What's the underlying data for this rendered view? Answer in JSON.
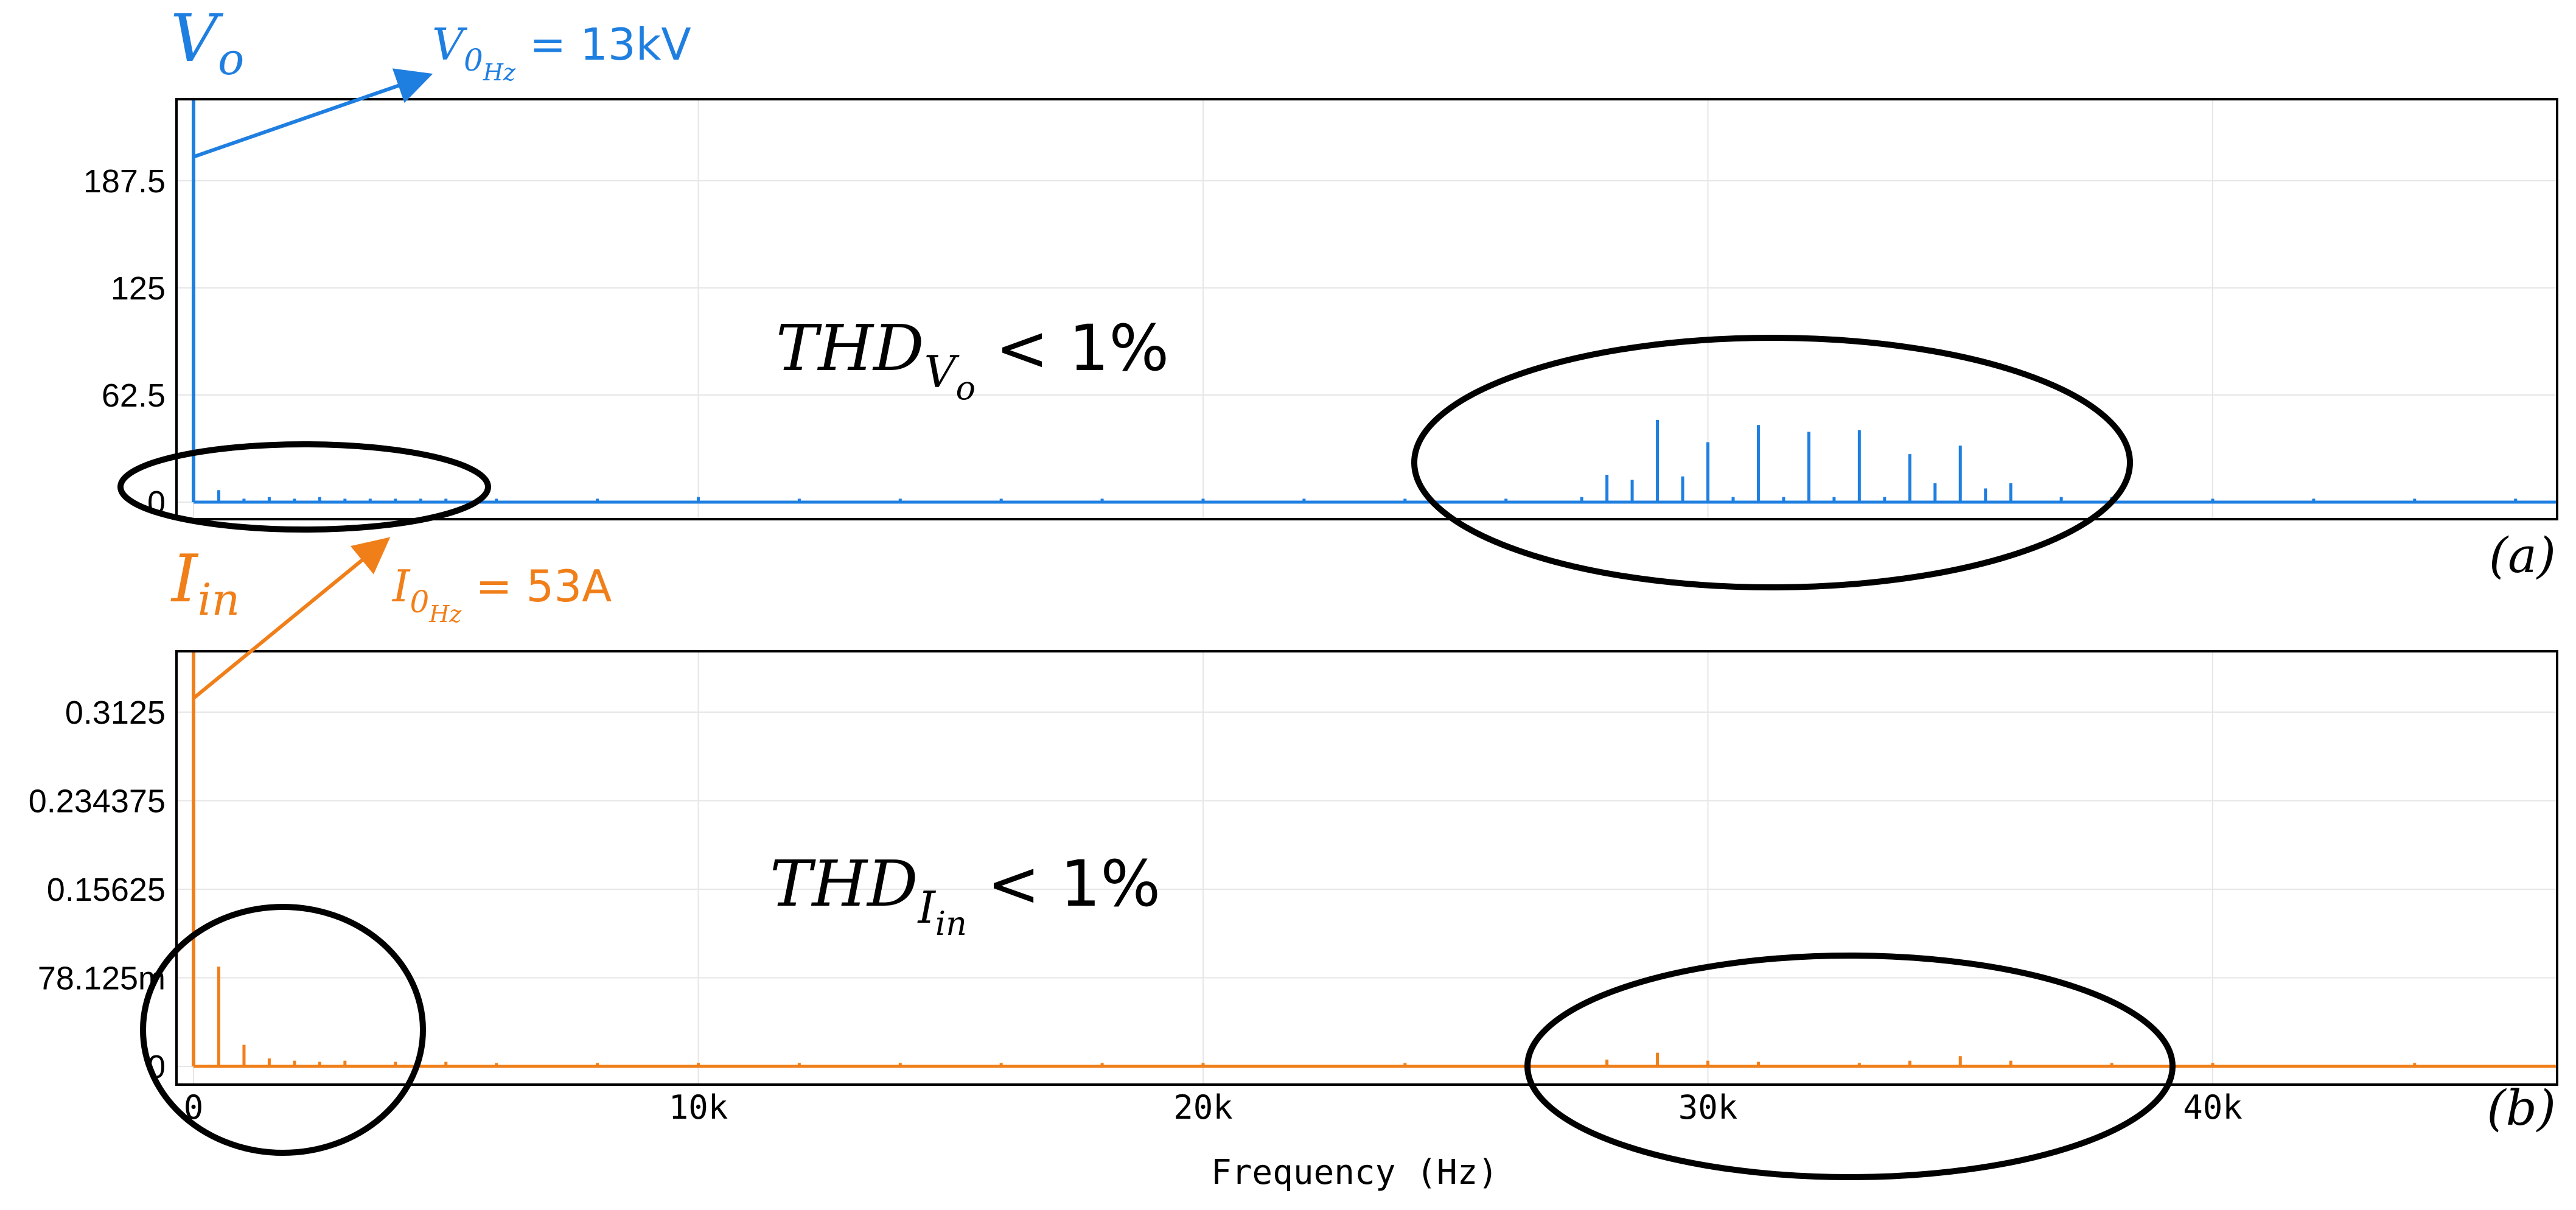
{
  "chart_data": [
    {
      "type": "bar",
      "id": "a",
      "panel_label": "(a)",
      "signal_label": "V",
      "signal_subscript": "o",
      "dc_annotation": {
        "base": "V",
        "sub": "0",
        "subsub": "Hz",
        "value_text": " = 13kV"
      },
      "thd_annotation": {
        "base": "THD",
        "sub": "V",
        "subsub": "o",
        "value_text": " < 1%"
      },
      "color": "#1f7fe0",
      "xlim": [
        0,
        47000
      ],
      "ylim": [
        -18,
        237
      ],
      "yticks": [
        0,
        62.5,
        125,
        187.5
      ],
      "ytick_labels": [
        "0",
        "62.5",
        "125",
        "187.5"
      ],
      "grid": true,
      "baseline": 0,
      "series": [
        {
          "x": [
            0,
            500,
            1000,
            1500,
            2000,
            2500,
            3000,
            3500,
            4000,
            4500,
            5000,
            6000,
            8000,
            10000,
            12000,
            14000,
            16000,
            18000,
            20000,
            22000,
            24000,
            26000,
            27500,
            28000,
            28500,
            29000,
            29500,
            30000,
            30500,
            31000,
            31500,
            32000,
            32500,
            33000,
            33500,
            34000,
            34500,
            35000,
            35500,
            36000,
            37000,
            38000,
            40000,
            42000,
            44000,
            46000
          ],
          "values": [
            237,
            7,
            2,
            3,
            2,
            3,
            2,
            2,
            2,
            2,
            2,
            2,
            2,
            3,
            2,
            2,
            2,
            2,
            2,
            2,
            2,
            2,
            3,
            16,
            13,
            48,
            15,
            35,
            3,
            45,
            3,
            41,
            3,
            42,
            3,
            28,
            11,
            33,
            8,
            11,
            3,
            3,
            2,
            2,
            2,
            2
          ]
        }
      ]
    },
    {
      "type": "bar",
      "id": "b",
      "panel_label": "(b)",
      "signal_label": "I",
      "signal_subscript": "in",
      "dc_annotation": {
        "base": "I",
        "sub": "0",
        "subsub": "Hz",
        "value_text": " = 53A"
      },
      "thd_annotation": {
        "base": "THD",
        "sub": "I",
        "subsub": "in",
        "value_text": " < 1%"
      },
      "color": "#f07f1a",
      "xlim": [
        0,
        47000
      ],
      "ylim": [
        0,
        0.38
      ],
      "yticks": [
        0,
        0.078125,
        0.15625,
        0.234375,
        0.3125
      ],
      "ytick_labels": [
        "0",
        "78.125m",
        "0.15625",
        "0.234375",
        "0.3125"
      ],
      "grid": true,
      "baseline": 0,
      "series": [
        {
          "x": [
            0,
            500,
            1000,
            1500,
            2000,
            2500,
            3000,
            4000,
            5000,
            6000,
            8000,
            10000,
            12000,
            14000,
            16000,
            18000,
            20000,
            24000,
            28000,
            29000,
            30000,
            31000,
            33000,
            34000,
            35000,
            36000,
            38000,
            40000,
            44000
          ],
          "values": [
            0.38,
            0.088,
            0.019,
            0.007,
            0.005,
            0.004,
            0.005,
            0.004,
            0.004,
            0.003,
            0.003,
            0.003,
            0.003,
            0.003,
            0.003,
            0.003,
            0.003,
            0.003,
            0.006,
            0.012,
            0.005,
            0.004,
            0.003,
            0.005,
            0.009,
            0.005,
            0.003,
            0.003,
            0.003
          ]
        }
      ]
    }
  ],
  "x_axis": {
    "ticks": [
      0,
      10000,
      20000,
      30000,
      40000
    ],
    "tick_labels": [
      "0",
      "10k",
      "20k",
      "30k",
      "40k"
    ],
    "label": "Frequency (Hz)"
  }
}
